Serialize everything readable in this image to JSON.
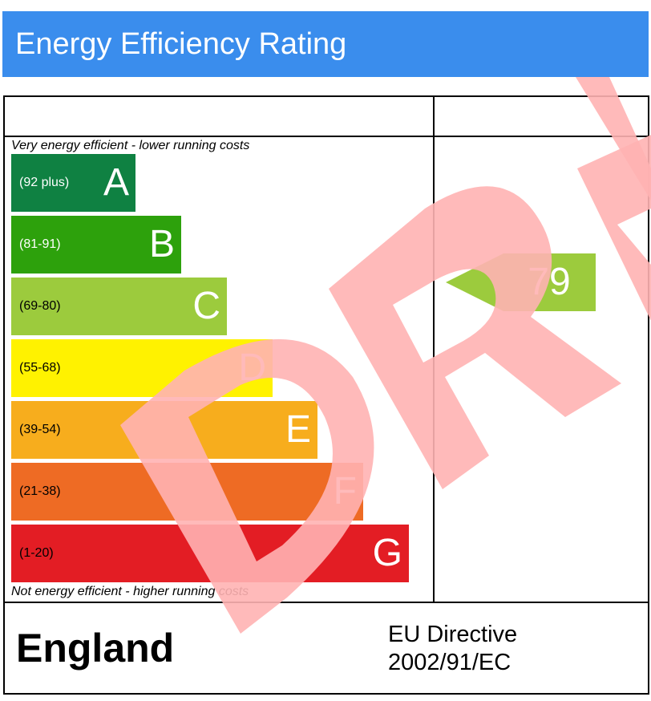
{
  "title": "Energy Efficiency Rating",
  "top_caption": "Very energy efficient - lower running costs",
  "bottom_caption": "Not energy efficient - higher running costs",
  "bands": [
    {
      "letter": "A",
      "range": "(92 plus)",
      "color": "#0f8142",
      "text_color": "#ffffff"
    },
    {
      "letter": "B",
      "range": "(81-91)",
      "color": "#2da10c",
      "text_color": "#ffffff"
    },
    {
      "letter": "C",
      "range": "(69-80)",
      "color": "#9ccb3d",
      "text_color": "#000000"
    },
    {
      "letter": "D",
      "range": "(55-68)",
      "color": "#fff200",
      "text_color": "#000000"
    },
    {
      "letter": "E",
      "range": "(39-54)",
      "color": "#f7ad1d",
      "text_color": "#000000"
    },
    {
      "letter": "F",
      "range": "(21-38)",
      "color": "#ee6b24",
      "text_color": "#000000"
    },
    {
      "letter": "G",
      "range": "(1-20)",
      "color": "#e31d24",
      "text_color": "#000000"
    }
  ],
  "rating": {
    "value": "79",
    "band": "C",
    "color": "#9ccb3d"
  },
  "region": "England",
  "directive_line1": "EU Directive",
  "directive_line2": "2002/91/EC",
  "colors": {
    "title_bar": "#3a8ded",
    "watermark": "#ffb3b3"
  },
  "watermark": {
    "text": "DRAFT",
    "icon": "draft-watermark"
  }
}
